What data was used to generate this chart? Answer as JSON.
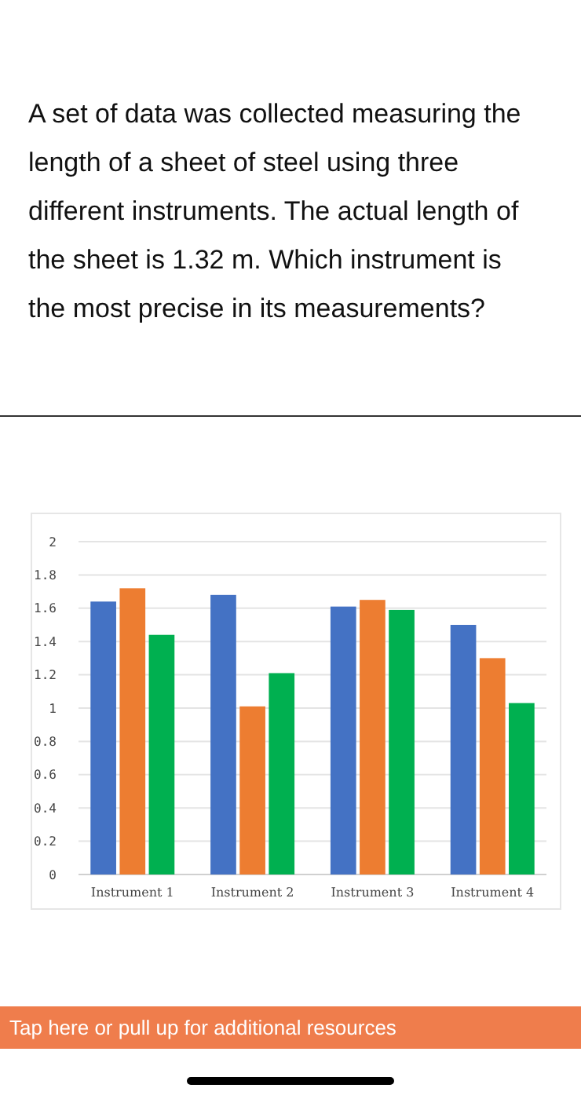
{
  "chart_data": {
    "type": "bar",
    "title": "A set of data was collected measuring the length of a sheet of steel using three different instruments. The actual length of the sheet is 1.32 m. Which instrument is the most precise in its measurements?",
    "categories": [
      "Instrument 1",
      "Instrument 2",
      "Instrument 3",
      "Instrument 4"
    ],
    "series": [
      {
        "color": "#4472c4",
        "values": [
          1.64,
          1.68,
          1.61,
          1.5
        ]
      },
      {
        "color": "#ed7d31",
        "values": [
          1.72,
          1.01,
          1.65,
          1.3
        ]
      },
      {
        "color": "#00b050",
        "values": [
          1.44,
          1.21,
          1.59,
          1.03
        ]
      }
    ],
    "ylim": [
      0,
      2
    ],
    "yticks": [
      0,
      0.2,
      0.4,
      0.6,
      0.8,
      1,
      1.2,
      1.4,
      1.6,
      1.8,
      2
    ],
    "grid": "y",
    "annotations": [
      "Tap here or pull up for additional resources"
    ]
  }
}
